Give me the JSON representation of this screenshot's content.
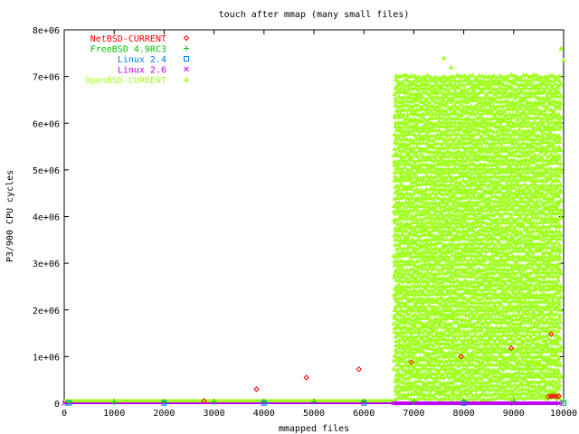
{
  "chart_data": {
    "type": "scatter",
    "title": "touch after mmap (many small files)",
    "xlabel": "mmapped files",
    "ylabel": "P3/900 CPU cycles",
    "xlim": [
      0,
      10000
    ],
    "ylim": [
      0,
      8000000
    ],
    "x_ticks": [
      0,
      1000,
      2000,
      3000,
      4000,
      5000,
      6000,
      7000,
      8000,
      9000,
      10000
    ],
    "x_tick_labels": [
      "0",
      "1000",
      "2000",
      "3000",
      "4000",
      "5000",
      "6000",
      "7000",
      "8000",
      "9000",
      "10000"
    ],
    "y_ticks": [
      0,
      1000000,
      2000000,
      3000000,
      4000000,
      5000000,
      6000000,
      7000000,
      8000000
    ],
    "y_tick_labels": [
      "0",
      "1e+06",
      "2e+06",
      "3e+06",
      "4e+06",
      "5e+06",
      "6e+06",
      "7e+06",
      "8e+06"
    ],
    "legend_position": "top-left",
    "grid": false,
    "series": [
      {
        "name": "NetBSD-CURRENT",
        "marker": "diamond",
        "color": "#ff0000",
        "points": [
          [
            2800,
            50000
          ],
          [
            3850,
            300000
          ],
          [
            4850,
            550000
          ],
          [
            5900,
            730000
          ],
          [
            6950,
            880000
          ],
          [
            7950,
            1000000
          ],
          [
            8950,
            1180000
          ],
          [
            9750,
            1480000
          ],
          [
            9700,
            140000
          ],
          [
            9750,
            150000
          ],
          [
            9800,
            155000
          ],
          [
            9850,
            145000
          ],
          [
            9900,
            150000
          ]
        ]
      },
      {
        "name": "FreeBSD 4.9RC3",
        "marker": "plus",
        "color": "#00c000",
        "points": [
          [
            100,
            10000
          ],
          [
            1000,
            15000
          ],
          [
            2000,
            20000
          ],
          [
            3000,
            25000
          ],
          [
            4000,
            30000
          ],
          [
            5000,
            30000
          ],
          [
            6000,
            35000
          ],
          [
            7000,
            35000
          ],
          [
            8000,
            40000
          ],
          [
            9000,
            40000
          ],
          [
            10000,
            45000
          ]
        ]
      },
      {
        "name": "Linux 2.4",
        "marker": "square",
        "color": "#0080ff",
        "points": [
          [
            100,
            5000
          ],
          [
            2000,
            5000
          ],
          [
            4000,
            5000
          ],
          [
            6000,
            5000
          ],
          [
            8000,
            5000
          ],
          [
            10000,
            5000
          ]
        ]
      },
      {
        "name": "Linux 2.6",
        "marker": "x",
        "color": "#c000ff",
        "points": [
          [
            0,
            0
          ],
          [
            6600,
            0
          ],
          [
            8000,
            0
          ],
          [
            9000,
            0
          ],
          [
            9900,
            0
          ]
        ]
      },
      {
        "name": "OpenBSD-CURRENT",
        "marker": "triangle",
        "color": "#a0ff20",
        "dense_region": {
          "x_start": 6600,
          "x_end": 9950,
          "y_min": 100000,
          "y_max": 7000000,
          "outliers": [
            [
              7600,
              7400000
            ],
            [
              7750,
              7200000
            ],
            [
              9950,
              7600000
            ],
            [
              10000,
              7350000
            ]
          ]
        },
        "baseline": {
          "x_start": 0,
          "x_end": 6600,
          "y": 30000
        }
      }
    ]
  }
}
